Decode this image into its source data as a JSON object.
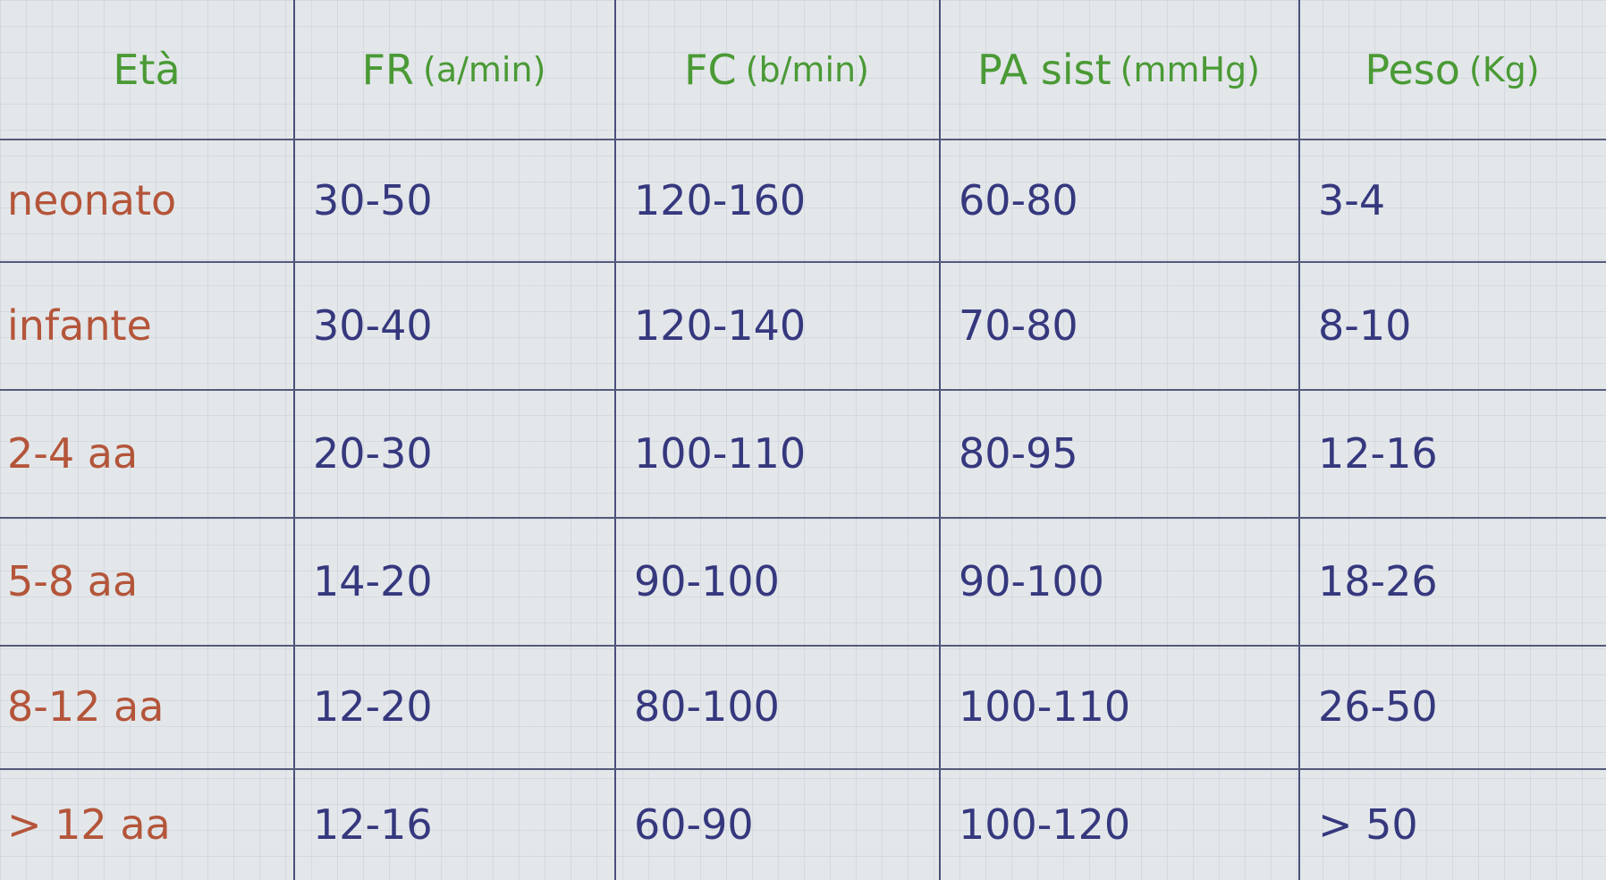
{
  "table": {
    "headers": [
      {
        "main": "Età",
        "unit": ""
      },
      {
        "main": "FR",
        "unit": "(a/min)"
      },
      {
        "main": "FC",
        "unit": "(b/min)"
      },
      {
        "main": "PA sist",
        "unit": "(mmHg)"
      },
      {
        "main": "Peso",
        "unit": "(Kg)"
      }
    ],
    "rows": [
      [
        "neonato",
        "30-50",
        "120-160",
        "60-80",
        "3-4"
      ],
      [
        "infante",
        "30-40",
        "120-140",
        "70-80",
        "8-10"
      ],
      [
        "2-4 aa",
        "20-30",
        "100-110",
        "80-95",
        "12-16"
      ],
      [
        "5-8 aa",
        "14-20",
        "90-100",
        "90-100",
        "18-26"
      ],
      [
        "8-12 aa",
        "12-20",
        "80-100",
        "100-110",
        "26-50"
      ],
      [
        "> 12 aa",
        "12-16",
        "60-90",
        "100-120",
        "> 50"
      ]
    ],
    "colors": {
      "header": "#4a9a35",
      "age": "#b4553a",
      "value": "#36387e"
    }
  }
}
